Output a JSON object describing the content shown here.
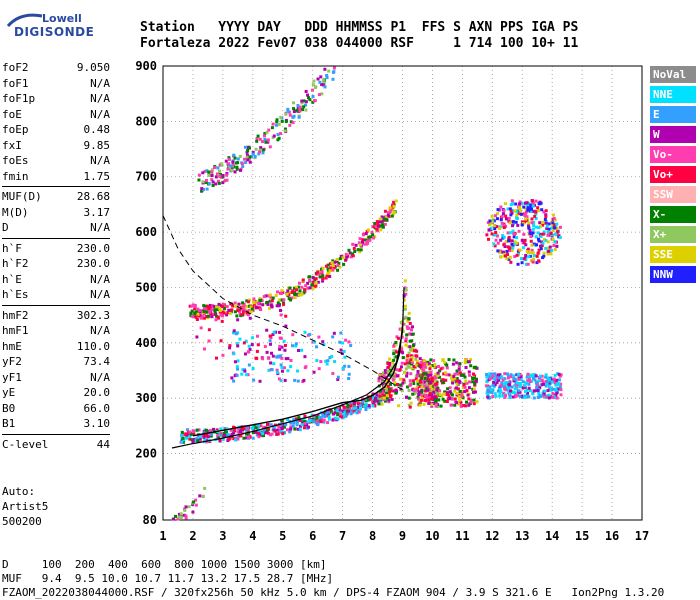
{
  "logo": {
    "line1": "Lowell",
    "line2": "DIGISONDE"
  },
  "header": {
    "line1": "Station   YYYY DAY   DDD HHMMSS P1  FFS S AXN PPS IGA PS",
    "line2": "Fortaleza 2022 Fev07 038 044000 RSF     1 714 100 10+ 11"
  },
  "params": {
    "group1": [
      {
        "k": "foF2",
        "v": "9.050"
      },
      {
        "k": "foF1",
        "v": "N/A"
      },
      {
        "k": "foF1p",
        "v": "N/A"
      },
      {
        "k": "foE",
        "v": "N/A"
      },
      {
        "k": "foEp",
        "v": "0.48"
      },
      {
        "k": "fxI",
        "v": "9.85"
      },
      {
        "k": "foEs",
        "v": "N/A"
      },
      {
        "k": "fmin",
        "v": "1.75"
      }
    ],
    "group2": [
      {
        "k": "MUF(D)",
        "v": "28.68"
      },
      {
        "k": "M(D)",
        "v": "3.17"
      },
      {
        "k": "D",
        "v": "N/A"
      }
    ],
    "group3": [
      {
        "k": "h`F",
        "v": "230.0"
      },
      {
        "k": "h`F2",
        "v": "230.0"
      },
      {
        "k": "h`E",
        "v": "N/A"
      },
      {
        "k": "h`Es",
        "v": "N/A"
      }
    ],
    "group4": [
      {
        "k": "hmF2",
        "v": "302.3"
      },
      {
        "k": "hmF1",
        "v": "N/A"
      },
      {
        "k": "hmE",
        "v": "110.0"
      },
      {
        "k": "yF2",
        "v": "73.4"
      },
      {
        "k": "yF1",
        "v": "N/A"
      },
      {
        "k": "yE",
        "v": "20.0"
      },
      {
        "k": "B0",
        "v": "66.0"
      },
      {
        "k": "B1",
        "v": "3.10"
      }
    ],
    "group5": [
      {
        "k": "C-level",
        "v": "44"
      }
    ]
  },
  "auto": {
    "line1": "Auto:",
    "line2": "Artist5",
    "line3": "500200"
  },
  "legend": [
    {
      "label": "NoVal",
      "color": "#8c8c8c"
    },
    {
      "label": "NNE",
      "color": "#00e0ff"
    },
    {
      "label": "E",
      "color": "#33a0ff"
    },
    {
      "label": "W",
      "color": "#b000b0"
    },
    {
      "label": "Vo-",
      "color": "#ff3db0"
    },
    {
      "label": "Vo+",
      "color": "#ff0040"
    },
    {
      "label": "SSW",
      "color": "#ffb0b0"
    },
    {
      "label": "X-",
      "color": "#008000"
    },
    {
      "label": "X+",
      "color": "#90c860"
    },
    {
      "label": "SSE",
      "color": "#dcd000"
    },
    {
      "label": "NNW",
      "color": "#2020ff"
    }
  ],
  "bottom": {
    "line1": "D     100  200  400  600  800 1000 1500 3000 [km]",
    "line2": "MUF   9.4  9.5 10.0 10.7 11.7 13.2 17.5 28.7 [MHz]",
    "line3": "FZAOM_2022038044000.RSF / 320fx256h 50 kHz 5.0 km / DPS-4 FZAOM 904 / 3.9 S 321.6 E   Ion2Png 1.3.20"
  },
  "chart_data": {
    "type": "scatter",
    "title": "",
    "xlabel": "",
    "ylabel": "",
    "xlim": [
      1,
      17
    ],
    "ylim": [
      80,
      900
    ],
    "xticks": [
      1,
      2,
      3,
      4,
      5,
      6,
      7,
      8,
      9,
      10,
      11,
      12,
      13,
      14,
      15,
      16,
      17
    ],
    "yticks": [
      80,
      200,
      300,
      400,
      500,
      600,
      700,
      800,
      900
    ],
    "grid": true,
    "legend_placement": "right",
    "profile_curve": [
      {
        "x": 1.3,
        "y": 210
      },
      {
        "x": 2,
        "y": 218
      },
      {
        "x": 3,
        "y": 228
      },
      {
        "x": 4,
        "y": 240
      },
      {
        "x": 5,
        "y": 254
      },
      {
        "x": 6,
        "y": 268
      },
      {
        "x": 7,
        "y": 288
      },
      {
        "x": 7.8,
        "y": 306
      },
      {
        "x": 8.4,
        "y": 330
      },
      {
        "x": 8.8,
        "y": 365
      },
      {
        "x": 9.0,
        "y": 420
      },
      {
        "x": 9.05,
        "y": 500
      }
    ],
    "trace_curve": [
      {
        "x": 2,
        "y": 232
      },
      {
        "x": 3,
        "y": 242
      },
      {
        "x": 4,
        "y": 252
      },
      {
        "x": 5,
        "y": 262
      },
      {
        "x": 6,
        "y": 276
      },
      {
        "x": 7,
        "y": 292
      },
      {
        "x": 7.6,
        "y": 296
      },
      {
        "x": 8.0,
        "y": 305
      },
      {
        "x": 8.4,
        "y": 320
      },
      {
        "x": 8.7,
        "y": 345
      },
      {
        "x": 8.9,
        "y": 380
      },
      {
        "x": 9.0,
        "y": 430
      }
    ],
    "dashed_curve": [
      {
        "x": 1,
        "y": 630
      },
      {
        "x": 1.5,
        "y": 570
      },
      {
        "x": 2,
        "y": 530
      },
      {
        "x": 3,
        "y": 480
      },
      {
        "x": 4,
        "y": 450
      },
      {
        "x": 5,
        "y": 430
      },
      {
        "x": 6,
        "y": 405
      },
      {
        "x": 7,
        "y": 380
      },
      {
        "x": 8,
        "y": 350
      },
      {
        "x": 9,
        "y": 315
      }
    ],
    "clusters": [
      {
        "name": "F2 O-trace",
        "x0": 1.6,
        "x1": 8.6,
        "y0": 232,
        "y1": 310,
        "curve": "rise",
        "colors": [
          "#ff3db0",
          "#00e0ff",
          "#008000",
          "#33a0ff",
          "#ff0040",
          "#b000b0"
        ],
        "n": 520
      },
      {
        "name": "spread-F peak",
        "x0": 8.2,
        "x1": 10.2,
        "y0": 280,
        "y1": 480,
        "curve": "spike",
        "colors": [
          "#ff3db0",
          "#008000",
          "#ff0040",
          "#dcd000",
          "#b000b0",
          "#90c860"
        ],
        "n": 420
      },
      {
        "name": "spread to 11",
        "x0": 9.5,
        "x1": 11.5,
        "y0": 285,
        "y1": 370,
        "curve": "flat",
        "colors": [
          "#dcd000",
          "#ff3db0",
          "#ff0040",
          "#b000b0",
          "#008000"
        ],
        "n": 260
      },
      {
        "name": "oblique E echo",
        "x0": 11.8,
        "x1": 14.3,
        "y0": 300,
        "y1": 345,
        "curve": "flat",
        "colors": [
          "#00e0ff",
          "#00e0ff",
          "#33a0ff",
          "#b000b0",
          "#ff3db0"
        ],
        "n": 300
      },
      {
        "name": "second hop",
        "x0": 1.9,
        "x1": 8.8,
        "y0": 455,
        "y1": 650,
        "curve": "rise2",
        "colors": [
          "#ff3db0",
          "#008000",
          "#b000b0",
          "#ff0040",
          "#dcd000"
        ],
        "n": 420
      },
      {
        "name": "third hop",
        "x0": 2.2,
        "x1": 6.8,
        "y0": 690,
        "y1": 900,
        "curve": "rise3",
        "colors": [
          "#008000",
          "#ff3db0",
          "#b000b0",
          "#90c860",
          "#33a0ff"
        ],
        "n": 220
      },
      {
        "name": "multi echo cluster",
        "x0": 11.8,
        "x1": 14.3,
        "y0": 540,
        "y1": 660,
        "curve": "blob",
        "colors": [
          "#b000b0",
          "#ff3db0",
          "#dcd000",
          "#00e0ff",
          "#ff0040",
          "#2020ff"
        ],
        "n": 360
      },
      {
        "name": "cyan streak",
        "x0": 3.3,
        "x1": 7.3,
        "y0": 330,
        "y1": 420,
        "curve": "cloud",
        "colors": [
          "#00e0ff",
          "#33a0ff",
          "#b000b0",
          "#ff3db0"
        ],
        "n": 120
      },
      {
        "name": "low E",
        "x0": 1.1,
        "x1": 2.5,
        "y0": 82,
        "y1": 135,
        "curve": "rise",
        "colors": [
          "#90c860",
          "#b000b0",
          "#ff3db0",
          "#008000"
        ],
        "n": 30
      },
      {
        "name": "mid streak",
        "x0": 2,
        "x1": 5.2,
        "y0": 370,
        "y1": 470,
        "curve": "cloud",
        "colors": [
          "#b000b0",
          "#ff3db0",
          "#ff0040"
        ],
        "n": 60
      }
    ]
  }
}
